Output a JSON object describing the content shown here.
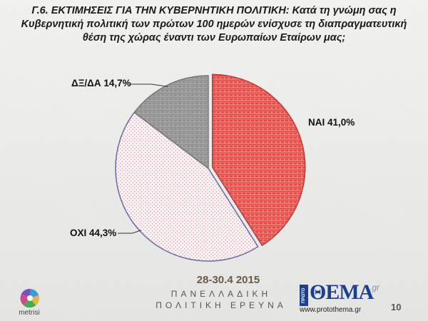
{
  "title_lines": [
    "Γ.6. ΕΚΤΙΜΗΣΕΙΣ ΓΙΑ ΤΗΝ ΚΥΒΕΡΝΗΤΙΚΗ ΠΟΛΙΤΙΚΗ: Κατά τη γνώμη σας η",
    "Κυβερνητική πολιτική των πρώτων 100 ημερών ενίσχυσε  τη διαπραγματευτική",
    "θέση της χώρας έναντι των Ευρωπαίων Εταίρων μας;"
  ],
  "chart_data": {
    "type": "pie",
    "categories": [
      "ΝΑΙ",
      "ΟΧΙ",
      "ΔΞ/ΔΑ"
    ],
    "values": [
      41.0,
      44.3,
      14.7
    ],
    "data_labels": [
      "ΝΑΙ 41,0%",
      "ΟΧΙ 44,3%",
      "ΔΞ/ΔΑ 14,7%"
    ],
    "colors": [
      "#e04a46",
      "#f6e8ea",
      "#9a9a9a"
    ],
    "start_angle": "12 o'clock, clockwise",
    "exploded_slice": "ΝΑΙ"
  },
  "footer": {
    "date": "28-30.4 2015",
    "line1": "ΠΑΝΕΛΛΑΔΙΚΗ",
    "line2": "ΠΟΛΙΤΙΚΗ ΕΡΕΥΝΑ",
    "logo_left_text": "metrisi",
    "logo_right_side": "ΠΡΩΤΟ",
    "logo_right_text": "ΘΕΜΑ",
    "logo_right_suffix": ".gr",
    "logo_right_url": "www.protothema.gr",
    "page_number": "10"
  }
}
